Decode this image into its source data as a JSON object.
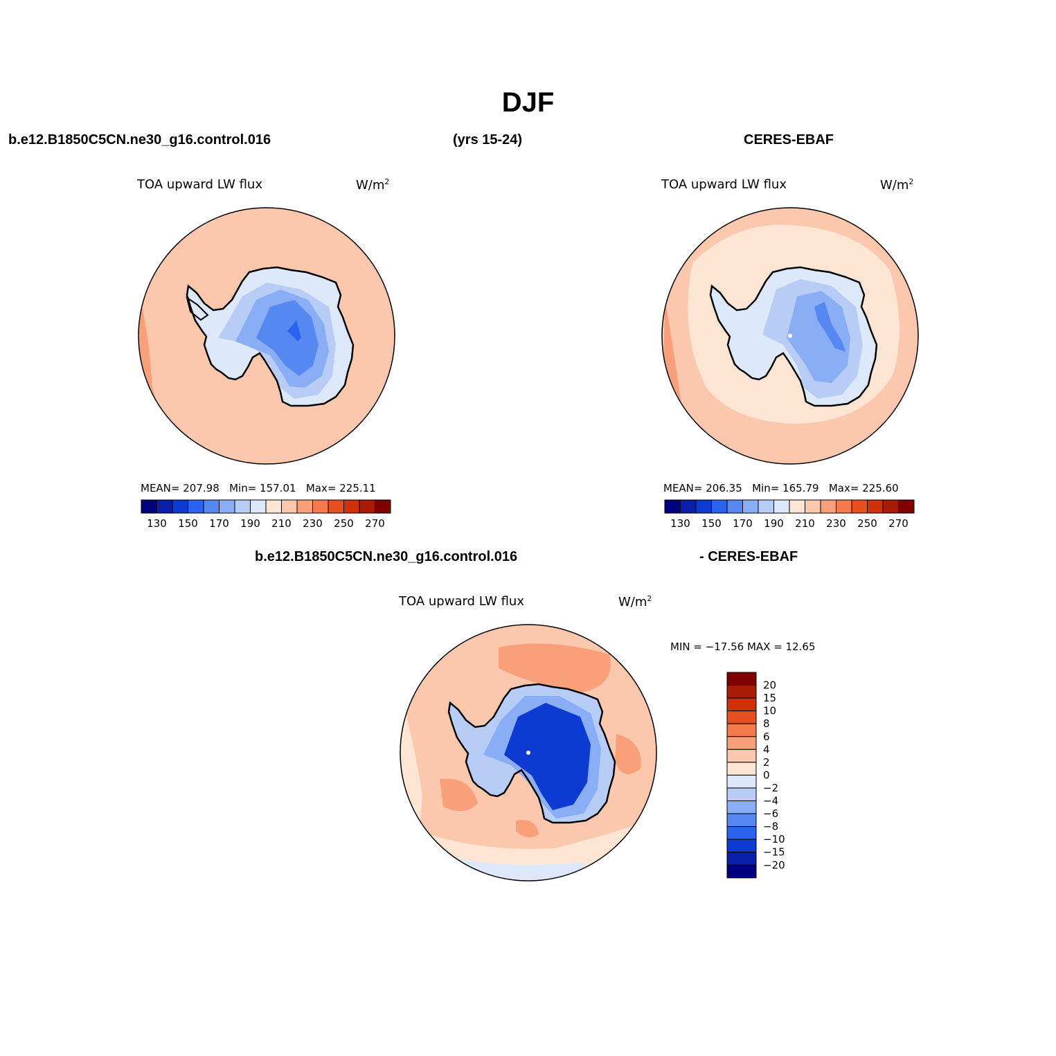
{
  "title": "DJF",
  "headers": {
    "case_name": "b.e12.B1850C5CN.ne30_g16.control.016",
    "years": "(yrs 15-24)",
    "obs_name": "CERES-EBAF",
    "diff_case": "b.e12.B1850C5CN.ne30_g16.control.016",
    "diff_obs": "- CERES-EBAF"
  },
  "panels": [
    {
      "variable": "TOA upward LW flux",
      "units_base": "W/m",
      "units_sup": "2",
      "stats": {
        "mean_label": "MEAN=",
        "mean": "207.98",
        "min_label": "Min=",
        "min": "157.01",
        "max_label": "Max=",
        "max": "225.11"
      }
    },
    {
      "variable": "TOA upward LW flux",
      "units_base": "W/m",
      "units_sup": "2",
      "stats": {
        "mean_label": "MEAN=",
        "mean": "206.35",
        "min_label": "Min=",
        "min": "165.79",
        "max_label": "Max=",
        "max": "225.60"
      }
    },
    {
      "variable": "TOA upward LW flux",
      "units_base": "W/m",
      "units_sup": "2",
      "stats_text": "MIN = −17.56 MAX =   12.65"
    }
  ],
  "abs_colorbar": {
    "colors": [
      "#00007f",
      "#0a1fa9",
      "#0d3bd1",
      "#2b63f0",
      "#5688f2",
      "#8aaef5",
      "#b8cdf6",
      "#dde9fb",
      "#fde5d3",
      "#fbc7ad",
      "#f9a07a",
      "#f57b4e",
      "#e9501f",
      "#cf3108",
      "#a81b04",
      "#7f0000"
    ],
    "tick_labels": [
      "130",
      "150",
      "170",
      "190",
      "210",
      "230",
      "250",
      "270"
    ]
  },
  "diff_colorbar": {
    "colors": [
      "#00007f",
      "#0a1fa9",
      "#0d3bd1",
      "#2b63f0",
      "#5688f2",
      "#8aaef5",
      "#b8cdf6",
      "#dde9fb",
      "#fde5d3",
      "#fbc7ad",
      "#f9a07a",
      "#f57b4e",
      "#e9501f",
      "#cf3108",
      "#a81b04",
      "#7f0000"
    ],
    "tick_labels": [
      "20",
      "15",
      "10",
      "8",
      "6",
      "4",
      "2",
      "0",
      "−2",
      "−4",
      "−6",
      "−8",
      "−10",
      "−15",
      "−20"
    ]
  },
  "map_colors": {
    "ocean": "#fbc7ad",
    "ocean_warm": "#f9a07a",
    "ocean_cool": "#fde5d3",
    "ice_light": "#dde9fb",
    "ice_mid": "#b8cdf6",
    "ice_blue": "#8aaef5",
    "ice_deep": "#5688f2",
    "ice_core": "#2b63f0",
    "diff_deep": "#0d3bd1",
    "diff_warm": "#f57b4e"
  }
}
